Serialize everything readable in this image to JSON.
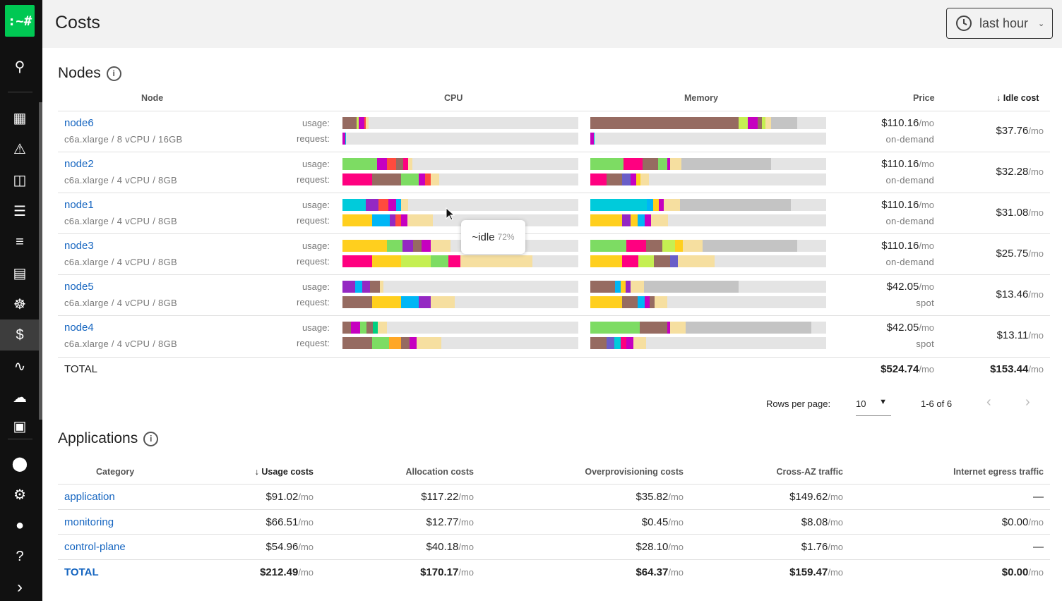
{
  "sidebar": {
    "logo": ":~#",
    "items": [
      "search-icon",
      "grid-icon",
      "alert-icon",
      "map-icon",
      "reports-icon",
      "log-search-icon",
      "servers-icon",
      "kubernetes-icon",
      "dollar-icon",
      "waveform-icon",
      "cloud-icon",
      "dashboard-icon",
      "nodes-icon",
      "gear-icon",
      "user-icon",
      "help-icon",
      "expand-icon"
    ],
    "active": "dollar-icon"
  },
  "header": {
    "title": "Costs",
    "range": "last hour"
  },
  "colors": {
    "brown": "#966b61",
    "lime": "#c5ef52",
    "magenta": "#c600c0",
    "red": "#ff4b3e",
    "tan": "#f6dfa0",
    "green": "#7ddc63",
    "pink": "#ff0080",
    "cyan": "#00cbdb",
    "purple": "#9428c3",
    "blue": "#00b6f5",
    "yellow": "#ffcf1e",
    "gray": "#c4c4c4",
    "slate": "#6a5ec8",
    "orange": "#ffa726",
    "mint": "#00d080"
  },
  "nodes": {
    "title": "Nodes",
    "columns": [
      "Node",
      "CPU",
      "Memory",
      "Price",
      "Idle cost"
    ],
    "usage_label": "usage:",
    "request_label": "request:",
    "rows": [
      {
        "name": "node6",
        "spec": "c6a.xlarge / 8 vCPU / 16GB",
        "price": "$110.16",
        "price_type": "on-demand",
        "idle": "$37.76",
        "cpu_usage": [
          [
            "brown",
            6
          ],
          [
            "lime",
            1
          ],
          [
            "magenta",
            2.4
          ],
          [
            "red",
            0.4
          ],
          [
            "tan",
            1.2
          ]
        ],
        "cpu_request": [
          [
            "magenta",
            1.3
          ],
          [
            "cyan",
            0.3
          ]
        ],
        "mem_usage": [
          [
            "brown",
            63
          ],
          [
            "lime",
            3.9
          ],
          [
            "magenta",
            4.2
          ],
          [
            "brown",
            1.8
          ],
          [
            "lime",
            1.5
          ],
          [
            "tan",
            2.4
          ],
          [
            "gray",
            11
          ]
        ],
        "mem_request": [
          [
            "magenta",
            1.5
          ],
          [
            "cyan",
            0.3
          ]
        ]
      },
      {
        "name": "node2",
        "spec": "c6a.xlarge / 4 vCPU / 8GB",
        "price": "$110.16",
        "price_type": "on-demand",
        "idle": "$32.28",
        "cpu_usage": [
          [
            "green",
            14.7
          ],
          [
            "magenta",
            4.2
          ],
          [
            "red",
            3.9
          ],
          [
            "brown",
            3
          ],
          [
            "pink",
            2.1
          ],
          [
            "tan",
            1.8
          ]
        ],
        "cpu_request": [
          [
            "pink",
            12.6
          ],
          [
            "brown",
            12.3
          ],
          [
            "green",
            7.5
          ],
          [
            "magenta",
            2.7
          ],
          [
            "red",
            2.4
          ],
          [
            "tan",
            3.6
          ]
        ],
        "mem_usage": [
          [
            "green",
            14
          ],
          [
            "pink",
            8.1
          ],
          [
            "brown",
            6.6
          ],
          [
            "green",
            3.9
          ],
          [
            "magenta",
            1.2
          ],
          [
            "tan",
            4.8
          ],
          [
            "gray",
            38
          ]
        ],
        "mem_request": [
          [
            "pink",
            6.9
          ],
          [
            "brown",
            6.6
          ],
          [
            "slate",
            3.6
          ],
          [
            "magenta",
            2.4
          ],
          [
            "yellow",
            1.8
          ],
          [
            "tan",
            3.6
          ]
        ]
      },
      {
        "name": "node1",
        "spec": "c6a.xlarge / 4 vCPU / 8GB",
        "price": "$110.16",
        "price_type": "on-demand",
        "idle": "$31.08",
        "cpu_usage": [
          [
            "cyan",
            9.9
          ],
          [
            "purple",
            5.4
          ],
          [
            "red",
            4.2
          ],
          [
            "magenta",
            3.3
          ],
          [
            "blue",
            2.1
          ],
          [
            "tan",
            3
          ]
        ],
        "cpu_request": [
          [
            "yellow",
            12.6
          ],
          [
            "blue",
            7.5
          ],
          [
            "purple",
            2.4
          ],
          [
            "red",
            2.4
          ],
          [
            "magenta",
            2.7
          ],
          [
            "tan",
            10.8
          ]
        ],
        "mem_usage": [
          [
            "cyan",
            24
          ],
          [
            "blue",
            2.7
          ],
          [
            "yellow",
            2.4
          ],
          [
            "magenta",
            2.1
          ],
          [
            "tan",
            6.9
          ],
          [
            "gray",
            46.8
          ]
        ],
        "mem_request": [
          [
            "yellow",
            13.5
          ],
          [
            "purple",
            3.6
          ],
          [
            "yellow",
            3
          ],
          [
            "blue",
            3
          ],
          [
            "magenta",
            2.7
          ],
          [
            "tan",
            7.2
          ]
        ]
      },
      {
        "name": "node3",
        "spec": "c6a.xlarge / 4 vCPU / 8GB",
        "price": "$110.16",
        "price_type": "on-demand",
        "idle": "$25.75",
        "cpu_usage": [
          [
            "yellow",
            19
          ],
          [
            "green",
            6.5
          ],
          [
            "purple",
            4.5
          ],
          [
            "brown",
            3.5
          ],
          [
            "magenta",
            3.8
          ],
          [
            "tan",
            8.4
          ]
        ],
        "cpu_request": [
          [
            "pink",
            12.6
          ],
          [
            "yellow",
            12.3
          ],
          [
            "lime",
            12.6
          ],
          [
            "green",
            7.5
          ],
          [
            "pink",
            5
          ],
          [
            "tan",
            30.5
          ]
        ],
        "mem_usage": [
          [
            "green",
            15.3
          ],
          [
            "pink",
            8.4
          ],
          [
            "brown",
            6.9
          ],
          [
            "lime",
            5.4
          ],
          [
            "yellow",
            3.3
          ],
          [
            "tan",
            8.4
          ],
          [
            "gray",
            40
          ]
        ],
        "mem_request": [
          [
            "yellow",
            13.5
          ],
          [
            "pink",
            6.9
          ],
          [
            "lime",
            6.6
          ],
          [
            "brown",
            6.9
          ],
          [
            "slate",
            3.3
          ],
          [
            "tan",
            15.6
          ]
        ]
      },
      {
        "name": "node5",
        "spec": "c6a.xlarge / 4 vCPU / 8GB",
        "price": "$42.05",
        "price_type": "spot",
        "idle": "$13.46",
        "cpu_usage": [
          [
            "purple",
            5.4
          ],
          [
            "blue",
            3
          ],
          [
            "purple",
            3.3
          ],
          [
            "brown",
            4.2
          ],
          [
            "tan",
            1.5
          ]
        ],
        "cpu_request": [
          [
            "brown",
            12.6
          ],
          [
            "yellow",
            12.3
          ],
          [
            "blue",
            7.5
          ],
          [
            "purple",
            5
          ],
          [
            "tan",
            10.2
          ]
        ],
        "mem_usage": [
          [
            "brown",
            10.5
          ],
          [
            "blue",
            2.4
          ],
          [
            "yellow",
            2.1
          ],
          [
            "purple",
            2.1
          ],
          [
            "tan",
            5.7
          ],
          [
            "gray",
            40
          ]
        ],
        "mem_request": [
          [
            "yellow",
            13.5
          ],
          [
            "brown",
            6.6
          ],
          [
            "blue",
            3
          ],
          [
            "magenta",
            2.1
          ],
          [
            "brown",
            2.1
          ],
          [
            "tan",
            5.4
          ]
        ]
      },
      {
        "name": "node4",
        "spec": "c6a.xlarge / 4 vCPU / 8GB",
        "price": "$42.05",
        "price_type": "spot",
        "idle": "$13.11",
        "cpu_usage": [
          [
            "brown",
            3.6
          ],
          [
            "magenta",
            3.9
          ],
          [
            "green",
            2.7
          ],
          [
            "brown",
            2.7
          ],
          [
            "mint",
            2
          ],
          [
            "tan",
            3.9
          ]
        ],
        "cpu_request": [
          [
            "brown",
            12.6
          ],
          [
            "green",
            7.2
          ],
          [
            "orange",
            5
          ],
          [
            "brown",
            3.6
          ],
          [
            "magenta",
            3
          ],
          [
            "tan",
            10.5
          ]
        ],
        "mem_usage": [
          [
            "green",
            21
          ],
          [
            "brown",
            11.7
          ],
          [
            "magenta",
            1.2
          ],
          [
            "tan",
            6.6
          ],
          [
            "gray",
            53.3
          ]
        ],
        "mem_request": [
          [
            "brown",
            6.9
          ],
          [
            "slate",
            3.3
          ],
          [
            "cyan",
            2.7
          ],
          [
            "pink",
            2.4
          ],
          [
            "magenta",
            3
          ],
          [
            "tan",
            5.4
          ]
        ]
      }
    ],
    "total": {
      "label": "TOTAL",
      "price": "$524.74",
      "idle": "$153.44"
    },
    "per_mo": "/mo",
    "tooltip": {
      "label": "~idle",
      "value": "72%"
    },
    "pagination": {
      "rows_per_page_label": "Rows per page:",
      "rows_per_page": "10",
      "range": "1-6 of 6"
    }
  },
  "applications": {
    "title": "Applications",
    "columns": [
      "Category",
      "Usage costs",
      "Allocation costs",
      "Overprovisioning costs",
      "Cross-AZ traffic",
      "Internet egress traffic"
    ],
    "rows": [
      {
        "name": "application",
        "values": [
          "$91.02",
          "$117.22",
          "$35.82",
          "$149.62",
          "—"
        ]
      },
      {
        "name": "monitoring",
        "values": [
          "$66.51",
          "$12.77",
          "$0.45",
          "$8.08",
          "$0.00"
        ]
      },
      {
        "name": "control-plane",
        "values": [
          "$54.96",
          "$40.18",
          "$28.10",
          "$1.76",
          "—"
        ]
      },
      {
        "name": "TOTAL",
        "values": [
          "$212.49",
          "$170.17",
          "$64.37",
          "$159.47",
          "$0.00"
        ]
      }
    ]
  }
}
